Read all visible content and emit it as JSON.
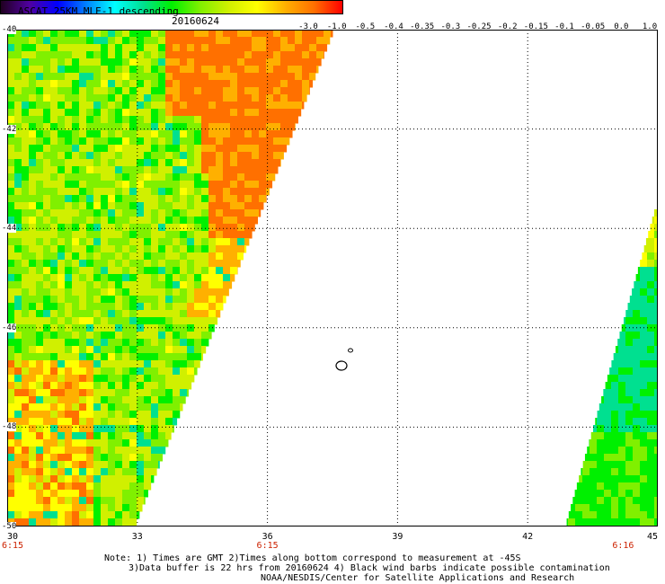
{
  "header": {
    "title": "ASCAT 25KM MLE-1 descending",
    "date": "20160624"
  },
  "colorbar": {
    "labels": [
      "-3.0",
      "-1.0",
      "-0.5",
      "-0.4",
      "-0.35",
      "-0.3",
      "-0.25",
      "-0.2",
      "-0.15",
      "-0.1",
      "-0.05",
      "0.0",
      "1.0"
    ],
    "colors": [
      "#200020",
      "#5000a0",
      "#0000ff",
      "#0080ff",
      "#00ffff",
      "#00e090",
      "#00f000",
      "#80f000",
      "#d0f000",
      "#ffff00",
      "#ffb000",
      "#ff7000",
      "#ff0000"
    ]
  },
  "axes": {
    "lat_labels": [
      "-40",
      "-42",
      "-44",
      "-46",
      "-48",
      "-50"
    ],
    "lon_labels": [
      "30",
      "33",
      "36",
      "39",
      "42",
      "45"
    ],
    "lat_range": [
      -50,
      -40
    ],
    "lon_range": [
      30,
      45
    ]
  },
  "time_labels": [
    {
      "text": "6:15",
      "lon": 30
    },
    {
      "text": "6:15",
      "lon": 36
    },
    {
      "text": "6:16",
      "lon": 44.2
    }
  ],
  "notes": {
    "line1": "Note: 1) Times are GMT 2)Times along bottom correspond to measurement at -45S",
    "line2": "3)Data buffer is 22 hrs from 20160624 4) Black wind barbs indicate possible contamination",
    "line3": "NOAA/NESDIS/Center for Satellite Applications and Research"
  }
}
